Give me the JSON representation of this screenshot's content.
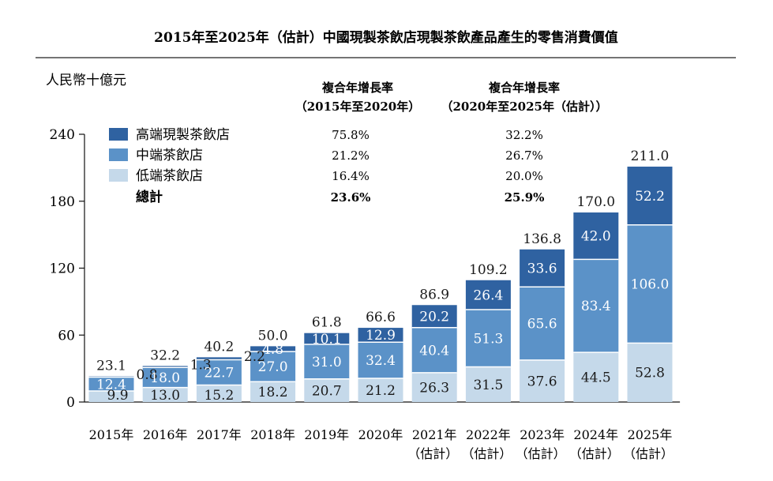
{
  "chart_data": {
    "type": "bar",
    "stacked": true,
    "title": "2015年至2025年（估計）中國現製茶飲店現製茶飲產品產生的零售消費價值",
    "ylabel": "人民幣十億元",
    "ylim": [
      0,
      240
    ],
    "yticks": [
      "0",
      "60",
      "120",
      "180",
      "240"
    ],
    "categories": [
      {
        "line1": "2015年",
        "line2": ""
      },
      {
        "line1": "2016年",
        "line2": ""
      },
      {
        "line1": "2017年",
        "line2": ""
      },
      {
        "line1": "2018年",
        "line2": ""
      },
      {
        "line1": "2019年",
        "line2": ""
      },
      {
        "line1": "2020年",
        "line2": ""
      },
      {
        "line1": "2021年",
        "line2": "（估計）"
      },
      {
        "line1": "2022年",
        "line2": "（估計）"
      },
      {
        "line1": "2023年",
        "line2": "（估計）"
      },
      {
        "line1": "2024年",
        "line2": "（估計）"
      },
      {
        "line1": "2025年",
        "line2": "（估計）"
      }
    ],
    "series": [
      {
        "name": "低端茶飲店",
        "color": "#c5d9ea",
        "values": [
          9.9,
          13.0,
          15.2,
          18.2,
          20.7,
          21.2,
          26.3,
          31.5,
          37.6,
          44.5,
          52.8
        ]
      },
      {
        "name": "中端茶飲店",
        "color": "#5b92c8",
        "values": [
          12.4,
          18.0,
          22.7,
          27.0,
          31.0,
          32.4,
          40.4,
          51.3,
          65.6,
          83.4,
          106.0
        ]
      },
      {
        "name": "高端現製茶飲店",
        "color": "#2f62a1",
        "values": [
          0.8,
          1.3,
          2.2,
          4.8,
          10.1,
          12.9,
          20.2,
          26.4,
          33.6,
          42.0,
          52.2
        ]
      }
    ],
    "value_labels": {
      "low": [
        "9.9",
        "13.0",
        "15.2",
        "18.2",
        "20.7",
        "21.2",
        "26.3",
        "31.5",
        "37.6",
        "44.5",
        "52.8"
      ],
      "mid": [
        "12.4",
        "18.0",
        "22.7",
        "27.0",
        "31.0",
        "32.4",
        "40.4",
        "51.3",
        "65.6",
        "83.4",
        "106.0"
      ],
      "high": [
        "0.8",
        "1.3",
        "2.2",
        "4.8",
        "10.1",
        "12.9",
        "20.2",
        "26.4",
        "33.6",
        "42.0",
        "52.2"
      ]
    },
    "totals": [
      "23.1",
      "32.2",
      "40.2",
      "50.0",
      "61.8",
      "66.6",
      "86.9",
      "109.2",
      "136.8",
      "170.0",
      "211.0"
    ],
    "legend_order": [
      "高端現製茶飲店",
      "中端茶飲店",
      "低端茶飲店"
    ],
    "legend_total_label": "總計",
    "cagr": {
      "col1": {
        "title1": "複合年增長率",
        "title2": "（2015年至2020年）",
        "values": [
          "75.8%",
          "21.2%",
          "16.4%",
          "23.6%"
        ]
      },
      "col2": {
        "title1": "複合年增長率",
        "title2": "（2020年至2025年（估計））",
        "values": [
          "32.2%",
          "26.7%",
          "20.0%",
          "25.9%"
        ]
      }
    },
    "grid": false,
    "legend_position": "top-left"
  }
}
